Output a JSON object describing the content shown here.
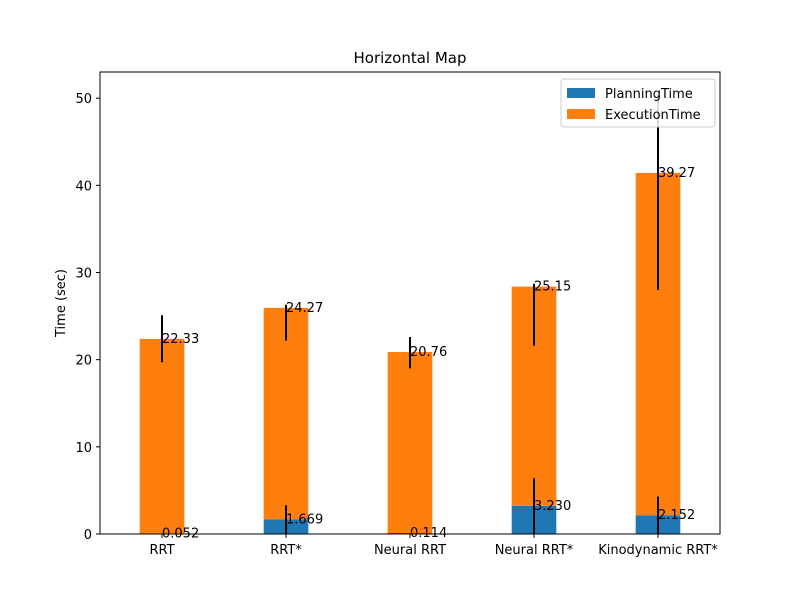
{
  "chart_data": {
    "type": "bar",
    "stacked": true,
    "title": "Horizontal Map",
    "xlabel": "",
    "ylabel": "Time (sec)",
    "ylim": [
      0,
      53
    ],
    "yticks": [
      0,
      10,
      20,
      30,
      40,
      50
    ],
    "categories": [
      "RRT",
      "RRT*",
      "Neural RRT",
      "Neural RRT*",
      "Kinodynamic RRT*"
    ],
    "series": [
      {
        "name": "PlanningTime",
        "color": "#1f77b4",
        "values": [
          0.052,
          1.669,
          0.114,
          3.23,
          2.152
        ],
        "labels": [
          "0.052",
          "1.669",
          "0.114",
          "3.230",
          "2.152"
        ],
        "error_range": [
          [
            0,
            0
          ],
          [
            0,
            3.3
          ],
          [
            0,
            0
          ],
          [
            0,
            6.4
          ],
          [
            0,
            4.3
          ]
        ]
      },
      {
        "name": "ExecutionTime",
        "color": "#ff7f0e",
        "values": [
          22.33,
          24.27,
          20.76,
          25.15,
          39.27
        ],
        "labels": [
          "22.33",
          "24.27",
          "20.76",
          "25.15",
          "39.27"
        ],
        "error_range": [
          [
            19.7,
            25.1
          ],
          [
            22.2,
            26.3
          ],
          [
            19.0,
            22.6
          ],
          [
            21.6,
            28.7
          ],
          [
            28.0,
            50.5
          ]
        ]
      }
    ],
    "legend": {
      "position": "top-right"
    },
    "grid": false
  }
}
